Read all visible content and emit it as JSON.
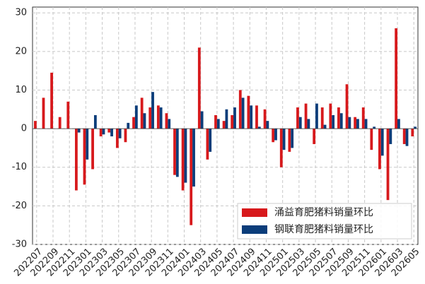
{
  "chart_data": {
    "type": "bar",
    "categories": [
      "202207",
      null,
      "202209",
      null,
      "202211",
      null,
      "202301",
      null,
      "202303",
      null,
      "202305",
      null,
      "202307",
      null,
      "202309",
      null,
      "202311",
      null,
      "202401",
      null,
      "202403",
      null,
      "202405",
      null,
      "202407",
      null,
      "202409",
      null,
      "202411",
      null,
      "202501",
      null,
      "202503",
      null,
      "202505",
      null,
      "202507",
      null,
      "202509",
      null,
      "202511",
      null,
      "202601",
      null,
      "202603",
      null,
      "202605"
    ],
    "series": [
      {
        "name": "涌益育肥猪料销量环比",
        "color": "#d7191c",
        "values": [
          2,
          8,
          14.5,
          3,
          7,
          -16,
          -14.5,
          -10.5,
          -2,
          -1,
          -5,
          -3.5,
          3,
          8,
          5.5,
          6,
          4,
          -12,
          -16,
          -25,
          21,
          -8,
          3.5,
          2,
          3.5,
          10,
          8.5,
          6,
          5,
          -3.5,
          -10,
          -6,
          5.5,
          6.5,
          -4,
          5.5,
          6.5,
          5.5,
          11.5,
          3,
          5.5,
          -5.5,
          -10.5,
          -18.5,
          26,
          -4,
          -2
        ]
      },
      {
        "name": "钢联育肥猪料销量环比",
        "color": "#0b3d7a",
        "values": [
          null,
          null,
          null,
          null,
          null,
          -1,
          -8,
          3.5,
          -1.5,
          -2,
          -2.5,
          1.5,
          6,
          4,
          9.5,
          5.5,
          2.5,
          -12.5,
          -14,
          -15,
          4.5,
          -6,
          2.5,
          5,
          5.5,
          8,
          6,
          0.5,
          2,
          -3,
          -5.5,
          -5,
          3,
          2.5,
          6.5,
          1,
          3.5,
          4,
          3,
          2.5,
          2.5,
          0.5,
          -7,
          -4,
          2.5,
          -4.5,
          0.5
        ]
      }
    ],
    "ylim": [
      -30,
      31.5
    ],
    "yticks": [
      -30,
      -20,
      -10,
      0,
      10,
      20,
      30
    ],
    "grid": true,
    "legend": "lower right"
  }
}
